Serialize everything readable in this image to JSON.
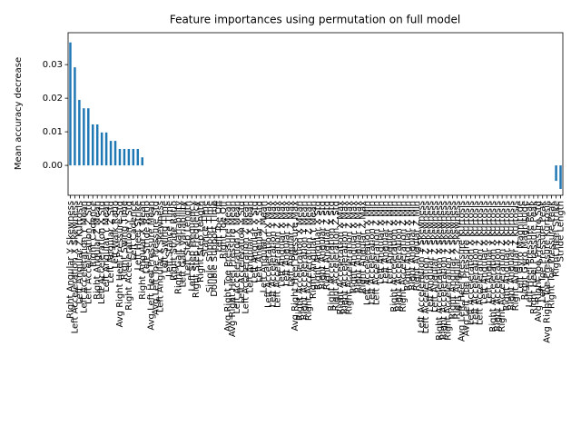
{
  "chart_data": {
    "type": "bar",
    "title": "Feature importances using permutation on full model",
    "y_label": "Mean accuracy decrease",
    "color": "#1f77b4",
    "categories": [
      "Right Angular Y Skewness",
      "Left Acceleration X Skewness",
      "Left Angular Z Kurtosis",
      "Left Acceleration Y Mean",
      "Left Acceleration Z Std",
      "Right Cadence",
      "Right Angular Z Mean",
      "Left Acceleration X Std",
      "Left Angular Y Mean",
      "Left Angular Z Std",
      "Left Walk Ratio",
      "Avg Right Heel Pressure Std",
      "Right Swing Time",
      "Right Acceleration Y Std",
      "Left Cadence",
      "Left Heel Strike",
      "Right Angular X Mean",
      "Left Stride Ratio",
      "Avg Left Heel Pressure Mean",
      "Avg Left Toe Pressure Std",
      "Left Angular X Skewness",
      "Left Swing Time",
      "Left Stance Time",
      "Right Stride Ratio",
      "Right Gait Variability",
      "Left Gait Variability",
      "Left Step Length",
      "Left Step Frequency",
      "Right Step Frequency",
      "Right Step Length",
      "Stance Time",
      "Single Support Time",
      "Double Support Time",
      "Left Toe Off",
      "Right Toe Off",
      "Avg Right Toe Pressure Mean",
      "Avg Right Heel Pressure Mean",
      "Left Acceleration X Mean",
      "Left Acceleration Y Std",
      "Left Acceleration Z Mean",
      "Left Angular X Mean",
      "Left Angular X Std",
      "Left Angular Y Std",
      "Left Angular Z Mean",
      "Left Acceleration X Max",
      "Left Acceleration Y Max",
      "Left Acceleration Z Max",
      "Left Angular X Max",
      "Left Angular Y Max",
      "Left Angular Z Max",
      "Avg Right Heel Pressure Max",
      "Right Acceleration X Mean",
      "Right Acceleration Y Mean",
      "Right Acceleration Z Mean",
      "Right Angular Y Mean",
      "Right Angular X Std",
      "Right Angular Y Std",
      "Right Angular Z Std",
      "Right Acceleration X Std",
      "Right Acceleration Z Std",
      "Right Acceleration X Max",
      "Right Acceleration Y Max",
      "Right Acceleration Z Max",
      "Right Angular X Max",
      "Right Angular Y Max",
      "Right Angular Z Max",
      "Left Acceleration X Min",
      "Left Acceleration Y Min",
      "Left Acceleration Z Min",
      "Left Angular X Min",
      "Left Angular Y Min",
      "Left Angular Z Min",
      "Right Acceleration X Min",
      "Right Acceleration Y Min",
      "Right Acceleration Z Min",
      "Right Angular X Min",
      "Right Angular Y Min",
      "Right Angular Z Min",
      "Left Acceleration Y Skewness",
      "Left Acceleration Z Skewness",
      "Left Angular Y Skewness",
      "Left Angular Z Skewness",
      "Right Acceleration X Skewness",
      "Right Acceleration Y Skewness",
      "Right Acceleration Z Skewness",
      "Right Angular X Skewness",
      "Right Angular Z Skewness",
      "Avg Left Heel Pressure Kurtosis",
      "Avg Left Toe Pressure Kurtosis",
      "Left Acceleration X Kurtosis",
      "Left Acceleration Y Kurtosis",
      "Left Acceleration Z Kurtosis",
      "Left Angular X Kurtosis",
      "Left Angular Y Kurtosis",
      "Right Acceleration X Kurtosis",
      "Right Acceleration Y Kurtosis",
      "Right Acceleration Z Kurtosis",
      "Right Angular X Kurtosis",
      "Right Angular Y Kurtosis",
      "Right Angular Z Kurtosis",
      "Left Gyro Magnitude",
      "Right Gyro Magnitude",
      "Left Heel Pressure Peak",
      "Right Heel Pressure Peak",
      "Avg Right Toe Pressure Std",
      "Left Toe Pressure Peak",
      "Avg Right Toe Pressure Kurtosis",
      "Right Toe Pressure Peak",
      "Right Heel Strike",
      "Stride Length"
    ],
    "values": [
      0.0366,
      0.0292,
      0.0195,
      0.017,
      0.017,
      0.0122,
      0.0122,
      0.0098,
      0.0098,
      0.0073,
      0.0073,
      0.0049,
      0.0049,
      0.0049,
      0.0049,
      0.0049,
      0.0024,
      0,
      0,
      0,
      0,
      0,
      0,
      0,
      0,
      0,
      0,
      0,
      0,
      0,
      0,
      0,
      0,
      0,
      0,
      0,
      0,
      0,
      0,
      0,
      0,
      0,
      0,
      0,
      0,
      0,
      0,
      0,
      0,
      0,
      0,
      0,
      0,
      0,
      0,
      0,
      0,
      0,
      0,
      0,
      0,
      0,
      0,
      0,
      0,
      0,
      0,
      0,
      0,
      0,
      0,
      0,
      0,
      0,
      0,
      0,
      0,
      0,
      0,
      0,
      0,
      0,
      0,
      0,
      0,
      0,
      0,
      0,
      0,
      0,
      0,
      0,
      0,
      0,
      0,
      0,
      0,
      0,
      0,
      0,
      0,
      0,
      0,
      0,
      0,
      0,
      0,
      0,
      -0.0046,
      -0.007
    ],
    "ylim": [
      -0.0089,
      0.0395
    ],
    "yticks": [
      {
        "value": 0,
        "label": "0.00"
      },
      {
        "value": 0.01,
        "label": "0.01"
      },
      {
        "value": 0.02,
        "label": "0.02"
      },
      {
        "value": 0.03,
        "label": "0.03"
      }
    ],
    "grid": false
  }
}
